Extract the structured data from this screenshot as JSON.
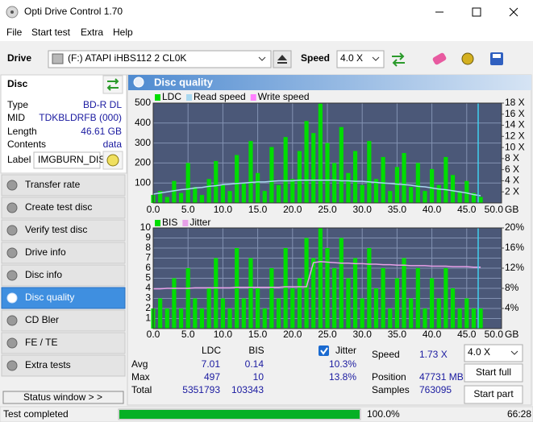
{
  "window": {
    "title": "Opti Drive Control 1.70"
  },
  "menu": [
    "File",
    "Start test",
    "Extra",
    "Help"
  ],
  "toolbar": {
    "drive_label": "Drive",
    "drive": "(F:)  ATAPI iHBS112  2 CL0K",
    "speed_label": "Speed",
    "speed": "4.0 X"
  },
  "disc": {
    "title": "Disc",
    "rows": [
      [
        "Type",
        "BD-R DL"
      ],
      [
        "MID",
        "TDKBLDRFB (000)"
      ],
      [
        "Length",
        "46.61 GB"
      ],
      [
        "Contents",
        "data"
      ]
    ],
    "label_key": "Label",
    "label_value": "IMGBURN_DIS"
  },
  "nav": [
    "Transfer rate",
    "Create test disc",
    "Verify test disc",
    "Drive info",
    "Disc info",
    "Disc quality",
    "CD Bler",
    "FE / TE",
    "Extra tests"
  ],
  "nav_selected": 5,
  "status_window": "Status window > >",
  "panel_title": "Disc quality",
  "chart_data": [
    {
      "type": "bar",
      "x": [
        0,
        1,
        2,
        3,
        4,
        5,
        6,
        7,
        8,
        9,
        10,
        11,
        12,
        13,
        14,
        15,
        16,
        17,
        18,
        19,
        20,
        21,
        22,
        23,
        24,
        25,
        26,
        27,
        28,
        29,
        30,
        31,
        32,
        33,
        34,
        35,
        36,
        37,
        38,
        39,
        40,
        41,
        42,
        43,
        44,
        45,
        46,
        47
      ],
      "xlim": [
        0,
        50
      ],
      "xticks": [
        {
          "value": 0,
          "label": "0.0"
        },
        {
          "value": 5,
          "label": "5.0"
        },
        {
          "value": 10,
          "label": "10.0"
        },
        {
          "value": 15,
          "label": "15.0"
        },
        {
          "value": 20,
          "label": "20.0"
        },
        {
          "value": 25,
          "label": "25.0"
        },
        {
          "value": 30,
          "label": "30.0"
        },
        {
          "value": 35,
          "label": "35.0"
        },
        {
          "value": 40,
          "label": "40.0"
        },
        {
          "value": 45,
          "label": "45.0"
        },
        {
          "value": 50,
          "label": "50.0"
        }
      ],
      "x_unit": "GB",
      "ylim": [
        0,
        500
      ],
      "yticks": [
        100,
        200,
        300,
        400,
        500
      ],
      "y2lim": [
        0,
        18
      ],
      "y2ticks": [
        {
          "value": 2,
          "label": "2 X"
        },
        {
          "value": 4,
          "label": "4 X"
        },
        {
          "value": 6,
          "label": "6 X"
        },
        {
          "value": 8,
          "label": "8 X"
        },
        {
          "value": 10,
          "label": "10 X"
        },
        {
          "value": 12,
          "label": "12 X"
        },
        {
          "value": 14,
          "label": "14 X"
        },
        {
          "value": 16,
          "label": "16 X"
        },
        {
          "value": 18,
          "label": "18 X"
        }
      ],
      "grid": true,
      "series": [
        {
          "name": "LDC",
          "color": "#00dd00",
          "kind": "bar",
          "values": [
            40,
            60,
            30,
            110,
            50,
            200,
            80,
            40,
            120,
            210,
            90,
            60,
            240,
            100,
            310,
            150,
            60,
            280,
            90,
            330,
            120,
            260,
            410,
            350,
            497,
            300,
            200,
            380,
            150,
            260,
            90,
            310,
            120,
            230,
            60,
            180,
            250,
            80,
            200,
            60,
            170,
            90,
            230,
            140,
            60,
            110,
            50,
            30
          ]
        },
        {
          "name": "Read speed",
          "color": "#a8d8f0",
          "kind": "line",
          "axis": "y2",
          "values": [
            1.6,
            1.8,
            2.0,
            2.2,
            2.4,
            2.5,
            2.7,
            2.8,
            3.0,
            3.1,
            3.3,
            3.4,
            3.5,
            3.6,
            3.7,
            3.8,
            3.8,
            3.9,
            4.0,
            4.0,
            4.0,
            4.1,
            4.1,
            4.1,
            4.1,
            4.1,
            4.1,
            4.0,
            4.0,
            3.9,
            3.9,
            3.8,
            3.7,
            3.6,
            3.5,
            3.4,
            3.3,
            3.2,
            3.0,
            2.9,
            2.7,
            2.5,
            2.4,
            2.2,
            2.0,
            1.8,
            1.5,
            1.3
          ]
        },
        {
          "name": "Write speed",
          "color": "#ff80ff",
          "kind": "line",
          "axis": "y2",
          "values": [
            null,
            null,
            null,
            null,
            null,
            null,
            null,
            null,
            null,
            null,
            null,
            null,
            null,
            null,
            null,
            null,
            null,
            null,
            null,
            null,
            null,
            null,
            null,
            null,
            null,
            null,
            null,
            null,
            null,
            null,
            null,
            null,
            null,
            null,
            null,
            null,
            null,
            null,
            null,
            null,
            null,
            null,
            null,
            null,
            null,
            null,
            null,
            null
          ]
        }
      ]
    },
    {
      "type": "bar",
      "x": [
        0,
        1,
        2,
        3,
        4,
        5,
        6,
        7,
        8,
        9,
        10,
        11,
        12,
        13,
        14,
        15,
        16,
        17,
        18,
        19,
        20,
        21,
        22,
        23,
        24,
        25,
        26,
        27,
        28,
        29,
        30,
        31,
        32,
        33,
        34,
        35,
        36,
        37,
        38,
        39,
        40,
        41,
        42,
        43,
        44,
        45,
        46,
        47
      ],
      "xlim": [
        0,
        50
      ],
      "xticks": [
        {
          "value": 0,
          "label": "0.0"
        },
        {
          "value": 5,
          "label": "5.0"
        },
        {
          "value": 10,
          "label": "10.0"
        },
        {
          "value": 15,
          "label": "15.0"
        },
        {
          "value": 20,
          "label": "20.0"
        },
        {
          "value": 25,
          "label": "25.0"
        },
        {
          "value": 30,
          "label": "30.0"
        },
        {
          "value": 35,
          "label": "35.0"
        },
        {
          "value": 40,
          "label": "40.0"
        },
        {
          "value": 45,
          "label": "45.0"
        },
        {
          "value": 50,
          "label": "50.0"
        }
      ],
      "x_unit": "GB",
      "ylim": [
        0,
        10
      ],
      "yticks": [
        1,
        2,
        3,
        4,
        5,
        6,
        7,
        8,
        9,
        10
      ],
      "y2lim": [
        0,
        20
      ],
      "y2ticks": [
        {
          "value": 4,
          "label": "4%"
        },
        {
          "value": 8,
          "label": "8%"
        },
        {
          "value": 12,
          "label": "12%"
        },
        {
          "value": 16,
          "label": "16%"
        },
        {
          "value": 20,
          "label": "20%"
        }
      ],
      "grid": true,
      "series": [
        {
          "name": "BIS",
          "color": "#00dd00",
          "kind": "bar",
          "values": [
            2,
            3,
            2,
            5,
            2,
            6,
            3,
            2,
            4,
            7,
            3,
            2,
            8,
            3,
            7,
            4,
            2,
            6,
            3,
            8,
            4,
            5,
            9,
            7,
            10,
            8,
            6,
            9,
            5,
            7,
            3,
            8,
            4,
            6,
            2,
            5,
            7,
            3,
            6,
            2,
            5,
            3,
            6,
            4,
            2,
            3,
            2,
            2
          ]
        },
        {
          "name": "Jitter",
          "color": "#e8a0e8",
          "kind": "line",
          "axis": "y2",
          "values": [
            7.9,
            7.9,
            8.0,
            8.0,
            8.0,
            8.0,
            8.1,
            8.1,
            8.1,
            8.1,
            8.1,
            8.1,
            8.2,
            8.2,
            8.2,
            8.2,
            8.2,
            8.2,
            8.2,
            8.3,
            8.3,
            8.3,
            8.3,
            13.1,
            13.3,
            13.2,
            13.1,
            13.0,
            13.0,
            12.9,
            12.9,
            12.8,
            12.8,
            12.7,
            12.7,
            12.6,
            12.6,
            12.5,
            12.5,
            12.5,
            12.4,
            12.4,
            12.4,
            12.3,
            12.3,
            12.3,
            12.2,
            12.2
          ]
        }
      ]
    }
  ],
  "stats": {
    "columns": [
      "LDC",
      "BIS"
    ],
    "rows": [
      {
        "label": "Avg",
        "values": [
          "7.01",
          "0.14"
        ]
      },
      {
        "label": "Max",
        "values": [
          "497",
          "10"
        ]
      },
      {
        "label": "Total",
        "values": [
          "5351793",
          "103343"
        ]
      }
    ],
    "jitter_label": "Jitter",
    "jitter_values": [
      "10.3%",
      "13.8%"
    ],
    "speed_label": "Speed",
    "speed_value": "1.73 X",
    "position_label": "Position",
    "position_value": "47731 MB",
    "samples_label": "Samples",
    "samples_value": "763095",
    "speed_select": "4.0 X",
    "buttons": [
      "Start full",
      "Start part"
    ]
  },
  "status": {
    "text": "Test completed",
    "progress": {
      "value": 100,
      "label": "100.0%"
    },
    "time": "66:28"
  }
}
